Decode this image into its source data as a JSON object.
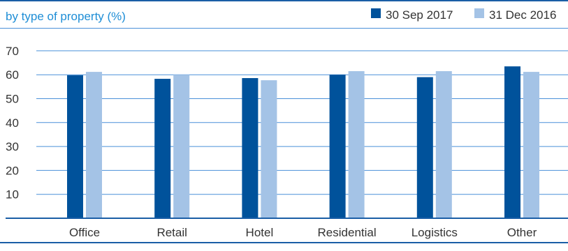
{
  "chart_data": {
    "type": "bar",
    "title": "by type of property (%)",
    "categories": [
      "Office",
      "Retail",
      "Hotel",
      "Residential",
      "Logistics",
      "Other"
    ],
    "series": [
      {
        "name": "30 Sep 2017",
        "color": "#00529b",
        "values": [
          59.8,
          58.3,
          58.6,
          60.0,
          59.0,
          63.5
        ]
      },
      {
        "name": "31 Dec 2016",
        "color": "#a4c3e6",
        "values": [
          61.2,
          60.0,
          57.7,
          61.5,
          61.5,
          61.2
        ]
      }
    ],
    "yticks": [
      10,
      20,
      30,
      40,
      50,
      60,
      70
    ],
    "ylim": [
      0,
      80
    ],
    "grid": true,
    "legend_position": "top-right",
    "colors": {
      "title": "#1f8ed6",
      "rule": "#1a5ea6",
      "grid": "#4a90d9"
    }
  }
}
